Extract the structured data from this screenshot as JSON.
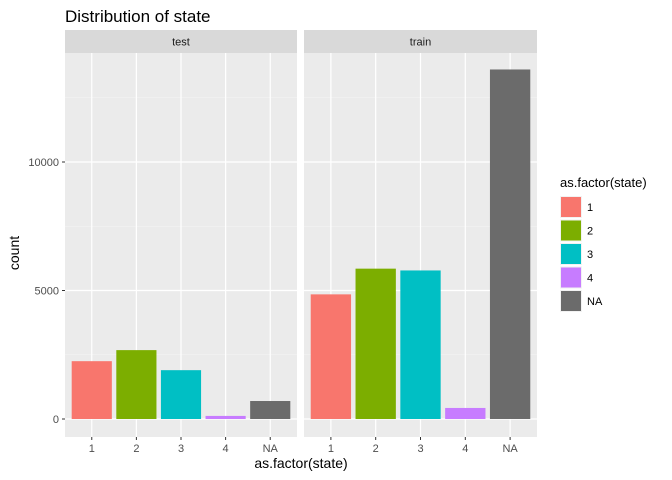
{
  "chart_data": {
    "type": "bar",
    "title": "Distribution of state",
    "xlabel": "as.factor(state)",
    "ylabel": "count",
    "ylim": [
      0,
      14000
    ],
    "y_ticks": [
      0,
      5000,
      10000
    ],
    "y_tick_labels": [
      "0",
      "5000",
      "10000"
    ],
    "grid": true,
    "legend": {
      "title": "as.factor(state)",
      "position": "right",
      "entries": [
        {
          "label": "1",
          "color": "#F8766D"
        },
        {
          "label": "2",
          "color": "#7CAE00"
        },
        {
          "label": "3",
          "color": "#00BFC4"
        },
        {
          "label": "4",
          "color": "#C77CFF"
        },
        {
          "label": "NA",
          "color": "#6B6B6B"
        }
      ]
    },
    "facets": [
      {
        "name": "test",
        "categories": [
          "1",
          "2",
          "3",
          "4",
          "NA"
        ],
        "values": [
          2250,
          2680,
          1900,
          120,
          700
        ]
      },
      {
        "name": "train",
        "categories": [
          "1",
          "2",
          "3",
          "4",
          "NA"
        ],
        "values": [
          4850,
          5850,
          5780,
          430,
          13600
        ]
      }
    ]
  }
}
